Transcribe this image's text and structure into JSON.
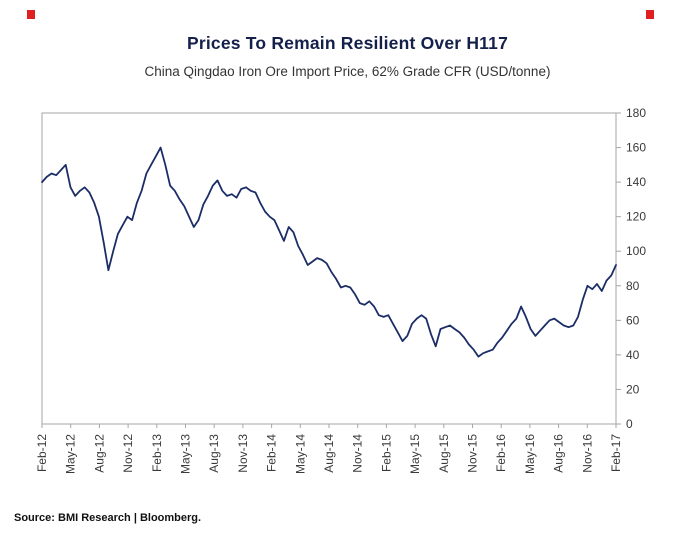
{
  "page": {
    "title": "Prices To Remain Resilient Over H117",
    "subtitle": "China Qingdao Iron Ore Import Price, 62% Grade CFR (USD/tonne)",
    "source": "Source: BMI Research | Bloomberg."
  },
  "colors": {
    "line": "#1b2d66",
    "title": "#14204a",
    "axis": "#a6a6a6",
    "tick_label": "#3a3a3a",
    "corner_mark": "#e02020"
  },
  "chart_data": {
    "type": "line",
    "title": "Prices To Remain Resilient Over H117",
    "subtitle": "China Qingdao Iron Ore Import Price, 62% Grade CFR (USD/tonne)",
    "xlabel": "",
    "ylabel": "USD/tonne",
    "ylim": [
      0,
      180
    ],
    "ytick_step": 20,
    "grid": false,
    "legend_position": "none",
    "y_axis_side": "right",
    "x_tick_labels": [
      "Feb-12",
      "May-12",
      "Aug-12",
      "Nov-12",
      "Feb-13",
      "May-13",
      "Aug-13",
      "Nov-13",
      "Feb-14",
      "May-14",
      "Aug-14",
      "Nov-14",
      "Feb-15",
      "May-15",
      "Aug-15",
      "Nov-15",
      "Feb-16",
      "May-16",
      "Aug-16",
      "Nov-16",
      "Feb-17"
    ],
    "x_start": "Feb-12",
    "x_end": "Feb-17",
    "series": [
      {
        "name": "China Qingdao Iron Ore Import Price, 62% Grade CFR",
        "color": "#1b2d66",
        "values": [
          140,
          143,
          145,
          144,
          147,
          150,
          137,
          132,
          135,
          137,
          134,
          128,
          120,
          105,
          89,
          100,
          110,
          115,
          120,
          118,
          128,
          135,
          145,
          150,
          155,
          160,
          150,
          138,
          135,
          130,
          126,
          120,
          114,
          118,
          127,
          132,
          138,
          141,
          135,
          132,
          133,
          131,
          136,
          137,
          135,
          134,
          128,
          123,
          120,
          118,
          112,
          106,
          114,
          111,
          103,
          98,
          92,
          94,
          96,
          95,
          93,
          88,
          84,
          79,
          80,
          79,
          75,
          70,
          69,
          71,
          68,
          63,
          62,
          63,
          58,
          53,
          48,
          51,
          58,
          61,
          63,
          61,
          52,
          45,
          55,
          56,
          57,
          55,
          53,
          50,
          46,
          43,
          39,
          41,
          42,
          43,
          47,
          50,
          54,
          58,
          61,
          68,
          62,
          55,
          51,
          54,
          57,
          60,
          61,
          59,
          57,
          56,
          57,
          62,
          72,
          80,
          78,
          81,
          77,
          83,
          86,
          92
        ]
      }
    ]
  }
}
